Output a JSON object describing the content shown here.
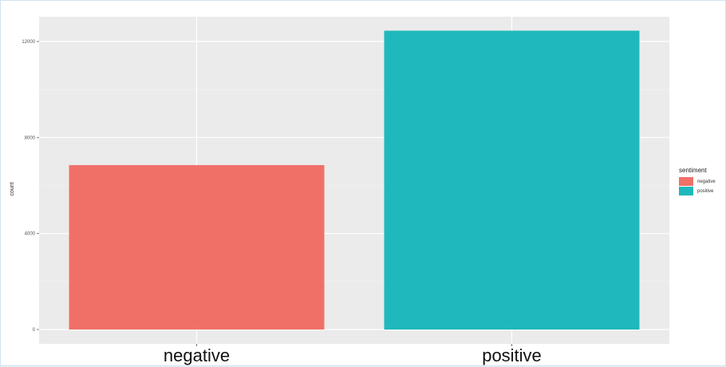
{
  "chart_data": {
    "type": "bar",
    "categories": [
      "negative",
      "positive"
    ],
    "values": [
      6850,
      12450
    ],
    "colors": [
      "#f07068",
      "#1fb8bc"
    ],
    "title": "",
    "xlabel": "",
    "ylabel": "count",
    "ylim": [
      0,
      12800
    ],
    "yticks": [
      0,
      4000,
      8000,
      12000
    ],
    "ytick_labels": [
      "0",
      "4000",
      "8000",
      "12000"
    ],
    "grid": true,
    "legend": {
      "title": "sentiment",
      "placement": "right",
      "entries": [
        {
          "label": "negative",
          "color": "#f07068"
        },
        {
          "label": "positive",
          "color": "#1fb8bc"
        }
      ]
    }
  }
}
